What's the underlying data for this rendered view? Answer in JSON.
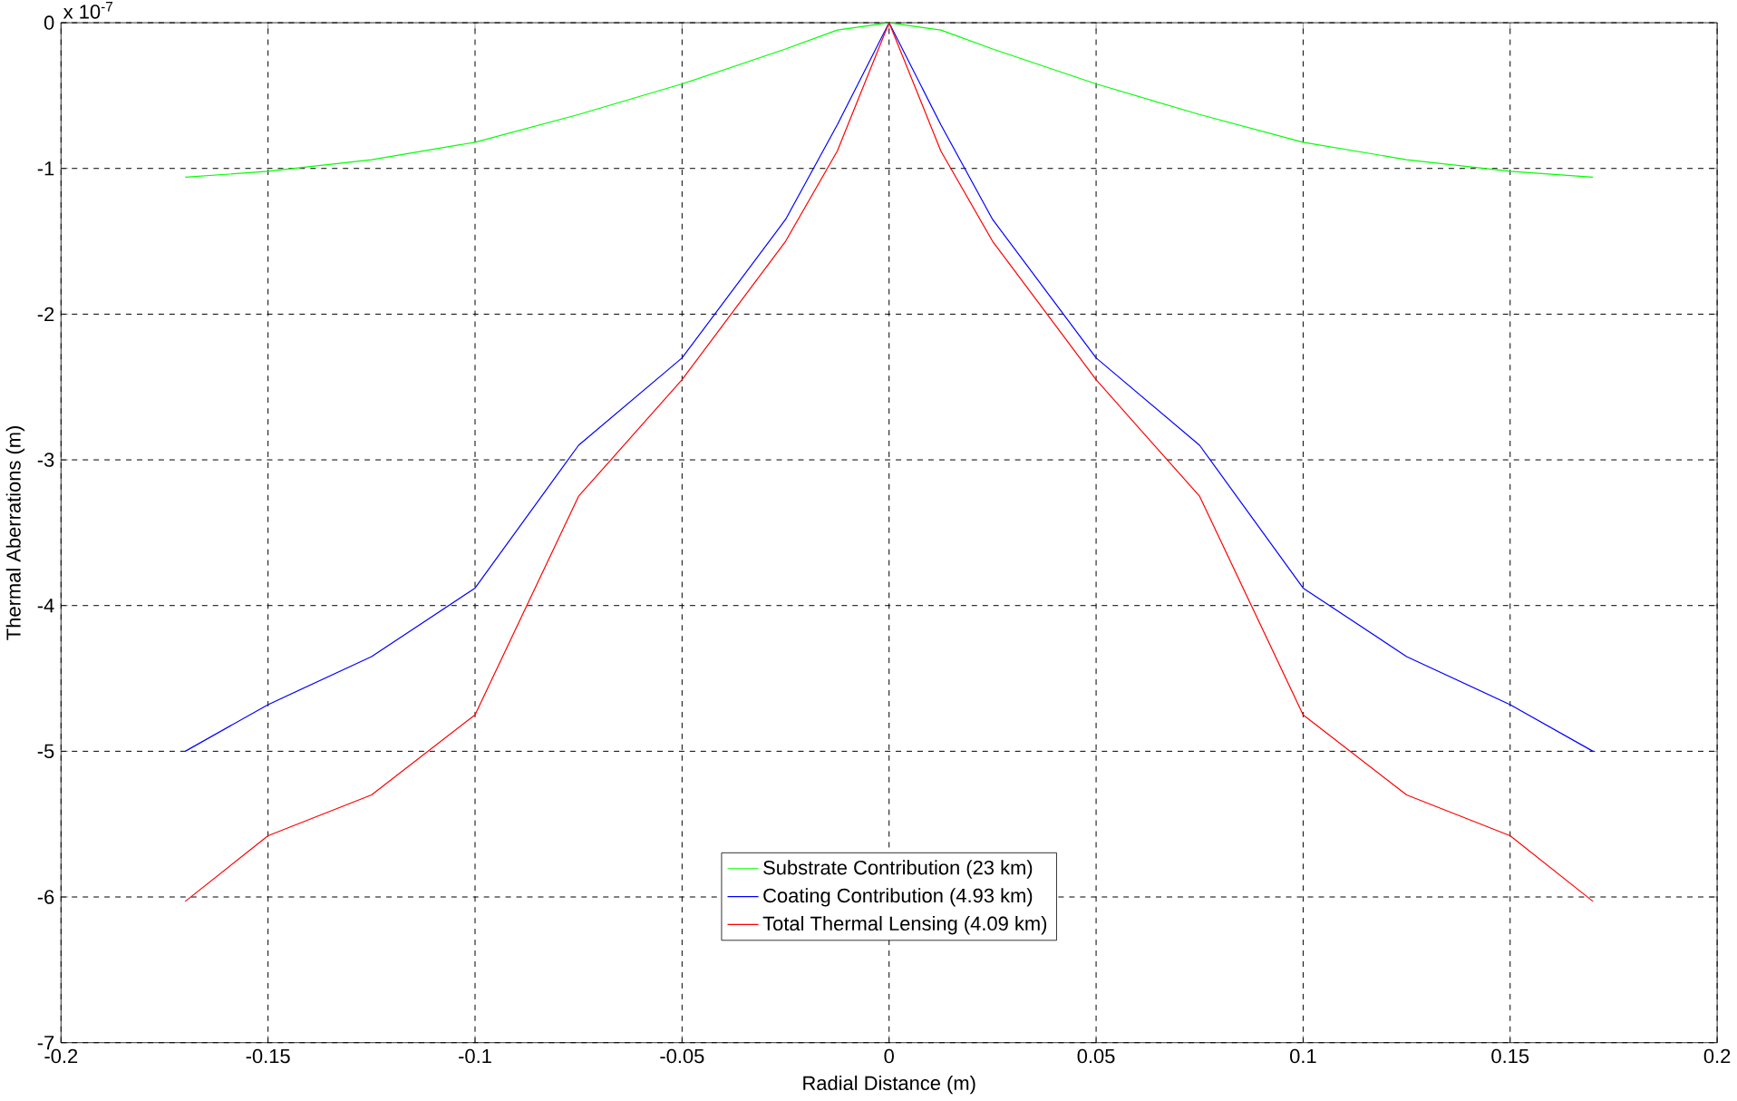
{
  "chart_data": {
    "type": "line",
    "xlabel": "Radial Distance (m)",
    "ylabel": "Thermal Aberrations (m)",
    "annotations": [
      "x 10$^{-7}$"
    ],
    "xlim": [
      -0.2,
      0.2
    ],
    "ylim": [
      -7,
      0
    ],
    "xticks": [
      -0.2,
      -0.15,
      -0.1,
      -0.05,
      0,
      0.05,
      0.1,
      0.15,
      0.2
    ],
    "yticks": [
      -7,
      -6,
      -5,
      -4,
      -3,
      -2,
      -1,
      0
    ],
    "grid": true,
    "legend": "bottom",
    "line_style": "solid",
    "marker": "none",
    "x": [
      -0.17,
      -0.15,
      -0.125,
      -0.1,
      -0.075,
      -0.05,
      -0.025,
      -0.0125,
      0,
      0.0125,
      0.025,
      0.05,
      0.075,
      0.1,
      0.125,
      0.15,
      0.17
    ],
    "series": [
      {
        "name": "Substrate Contribution (23 km)",
        "color": "#00ff00",
        "values": [
          -1.06,
          -1.02,
          -0.94,
          -0.82,
          -0.63,
          -0.42,
          -0.18,
          -0.05,
          0,
          -0.05,
          -0.18,
          -0.42,
          -0.63,
          -0.82,
          -0.94,
          -1.02,
          -1.06
        ]
      },
      {
        "name": "Coating Contribution (4.93 km)",
        "color": "#0000ff",
        "values": [
          -5.0,
          -4.68,
          -4.35,
          -3.88,
          -2.9,
          -2.3,
          -1.35,
          -0.7,
          0,
          -0.7,
          -1.35,
          -2.3,
          -2.9,
          -3.88,
          -4.35,
          -4.68,
          -5.0
        ]
      },
      {
        "name": "Total Thermal Lensing (4.09 km)",
        "color": "#ff0000",
        "values": [
          -6.03,
          -5.58,
          -5.3,
          -4.75,
          -3.25,
          -2.45,
          -1.5,
          -0.88,
          0,
          -0.88,
          -1.5,
          -2.45,
          -3.25,
          -4.75,
          -5.3,
          -5.58,
          -6.03
        ]
      }
    ]
  }
}
